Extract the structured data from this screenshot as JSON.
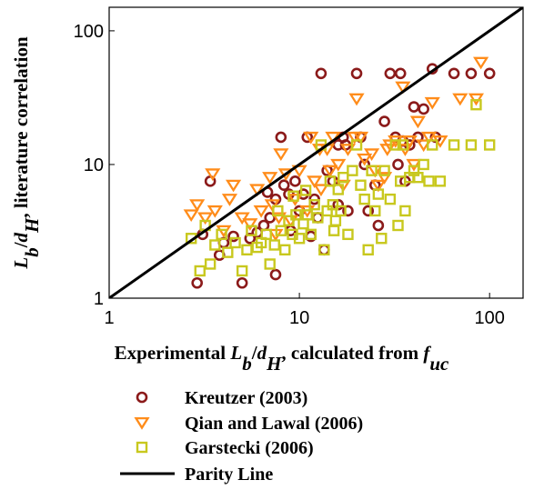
{
  "chart_data": {
    "type": "scatter",
    "title": "",
    "xlabel": {
      "parts": [
        {
          "text": "Experimental ",
          "italic": false
        },
        {
          "text": "L",
          "italic": true
        },
        {
          "text": "b",
          "italic": true,
          "sub": true
        },
        {
          "text": "/",
          "italic": false
        },
        {
          "text": "d",
          "italic": true
        },
        {
          "text": "H",
          "italic": true,
          "sub": true
        },
        {
          "text": ", calculated from ",
          "italic": false
        },
        {
          "text": "f",
          "italic": true
        },
        {
          "text": "uc",
          "italic": true,
          "sub": true
        }
      ]
    },
    "ylabel": {
      "parts": [
        {
          "text": "L",
          "italic": true
        },
        {
          "text": "b",
          "italic": true,
          "sub": true
        },
        {
          "text": "/",
          "italic": false
        },
        {
          "text": "d",
          "italic": true
        },
        {
          "text": "H",
          "italic": true,
          "sub": true
        },
        {
          "text": ", literature correlation",
          "italic": false
        }
      ]
    },
    "xscale": "log",
    "yscale": "log",
    "xlim": [
      1,
      150
    ],
    "ylim": [
      1,
      150
    ],
    "xticks": [
      1,
      10,
      100
    ],
    "yticks": [
      1,
      10,
      100
    ],
    "xtick_labels": [
      "1",
      "10",
      "100"
    ],
    "ytick_labels": [
      "1",
      "10",
      "100"
    ],
    "grid": false,
    "legend_position": "bottom",
    "series": [
      {
        "name": "Kreutzer (2003)",
        "marker": "circle",
        "color": "#8b1a1a",
        "points": [
          [
            2.9,
            1.3
          ],
          [
            3.1,
            3.0
          ],
          [
            3.4,
            7.5
          ],
          [
            3.8,
            2.1
          ],
          [
            4.0,
            2.6
          ],
          [
            4.5,
            2.9
          ],
          [
            5.0,
            1.3
          ],
          [
            5.5,
            2.8
          ],
          [
            6.0,
            3.1
          ],
          [
            6.5,
            3.5
          ],
          [
            7.0,
            4.0
          ],
          [
            7.5,
            1.5
          ],
          [
            7.5,
            5.5
          ],
          [
            8.0,
            16.0
          ],
          [
            8.3,
            7.0
          ],
          [
            8.8,
            6.0
          ],
          [
            9.0,
            3.2
          ],
          [
            9.5,
            7.5
          ],
          [
            10.0,
            4.5
          ],
          [
            10.5,
            6.0
          ],
          [
            11.0,
            16.0
          ],
          [
            12.0,
            5.5
          ],
          [
            12.5,
            4.0
          ],
          [
            13.0,
            48.0
          ],
          [
            13.5,
            2.3
          ],
          [
            14.0,
            9.0
          ],
          [
            15.0,
            7.5
          ],
          [
            16.0,
            14.0
          ],
          [
            17.0,
            16.0
          ],
          [
            18.0,
            4.5
          ],
          [
            20.0,
            48.0
          ],
          [
            21.0,
            16.0
          ],
          [
            22.0,
            10.0
          ],
          [
            23.0,
            4.5
          ],
          [
            25.0,
            7.0
          ],
          [
            26.0,
            3.5
          ],
          [
            28.0,
            21.0
          ],
          [
            30.0,
            48.0
          ],
          [
            32.0,
            16.0
          ],
          [
            33.0,
            10.0
          ],
          [
            34.0,
            48.0
          ],
          [
            36.0,
            7.5
          ],
          [
            40.0,
            27.0
          ],
          [
            42.0,
            16.0
          ],
          [
            45.0,
            26.0
          ],
          [
            50.0,
            52.0
          ],
          [
            52.0,
            16.0
          ],
          [
            65.0,
            48.0
          ],
          [
            80.0,
            48.0
          ],
          [
            100.0,
            48.0
          ],
          [
            35.0,
            15.0
          ],
          [
            38.0,
            14.0
          ],
          [
            17.5,
            14.0
          ],
          [
            16.0,
            5.0
          ],
          [
            11.5,
            2.9
          ],
          [
            6.8,
            6.2
          ]
        ]
      },
      {
        "name": "Qian and Lawal (2006)",
        "marker": "triangle-down",
        "color": "#ff8c1a",
        "points": [
          [
            2.7,
            4.2
          ],
          [
            2.9,
            5.0
          ],
          [
            3.2,
            4.0
          ],
          [
            3.5,
            8.5
          ],
          [
            3.6,
            4.5
          ],
          [
            4.0,
            3.2
          ],
          [
            4.3,
            5.5
          ],
          [
            4.5,
            7.0
          ],
          [
            5.0,
            4.0
          ],
          [
            5.5,
            3.6
          ],
          [
            6.0,
            6.5
          ],
          [
            6.3,
            4.5
          ],
          [
            7.0,
            8.0
          ],
          [
            7.2,
            5.0
          ],
          [
            7.5,
            3.0
          ],
          [
            8.0,
            12.0
          ],
          [
            8.5,
            8.5
          ],
          [
            9.0,
            3.8
          ],
          [
            9.5,
            5.5
          ],
          [
            10.0,
            9.0
          ],
          [
            11.0,
            4.5
          ],
          [
            11.5,
            16.0
          ],
          [
            12.0,
            7.5
          ],
          [
            13.0,
            6.5
          ],
          [
            14.0,
            13.0
          ],
          [
            14.5,
            9.0
          ],
          [
            15.0,
            16.0
          ],
          [
            16.0,
            10.0
          ],
          [
            17.0,
            7.0
          ],
          [
            18.0,
            13.0
          ],
          [
            20.0,
            31.0
          ],
          [
            21.0,
            16.0
          ],
          [
            22.0,
            11.0
          ],
          [
            24.0,
            12.0
          ],
          [
            25.0,
            9.0
          ],
          [
            26.0,
            7.0
          ],
          [
            28.0,
            8.0
          ],
          [
            30.0,
            14.0
          ],
          [
            32.0,
            15.0
          ],
          [
            35.0,
            38.0
          ],
          [
            36.0,
            13.0
          ],
          [
            38.0,
            15.0
          ],
          [
            40.0,
            10.0
          ],
          [
            42.0,
            21.0
          ],
          [
            45.0,
            14.0
          ],
          [
            50.0,
            29.0
          ],
          [
            55.0,
            15.0
          ],
          [
            70.0,
            31.0
          ],
          [
            85.0,
            31.0
          ],
          [
            90.0,
            58.0
          ],
          [
            7.8,
            4.0
          ],
          [
            12.8,
            13.0
          ],
          [
            19.5,
            16.0
          ],
          [
            29.0,
            13.0
          ],
          [
            48.0,
            16.0
          ]
        ]
      },
      {
        "name": "Garstecki (2006)",
        "marker": "square",
        "color": "#c8c81e",
        "points": [
          [
            2.7,
            2.8
          ],
          [
            3.0,
            1.6
          ],
          [
            3.2,
            3.5
          ],
          [
            3.4,
            1.8
          ],
          [
            3.6,
            2.5
          ],
          [
            3.9,
            3.0
          ],
          [
            4.2,
            2.2
          ],
          [
            4.6,
            2.6
          ],
          [
            5.0,
            1.6
          ],
          [
            5.3,
            2.3
          ],
          [
            5.6,
            3.2
          ],
          [
            6.0,
            2.4
          ],
          [
            6.3,
            2.6
          ],
          [
            6.7,
            3.0
          ],
          [
            7.0,
            1.8
          ],
          [
            7.4,
            2.5
          ],
          [
            7.7,
            4.5
          ],
          [
            8.0,
            3.2
          ],
          [
            8.4,
            2.3
          ],
          [
            8.8,
            3.8
          ],
          [
            9.2,
            3.0
          ],
          [
            9.6,
            4.2
          ],
          [
            10.0,
            2.8
          ],
          [
            10.5,
            3.6
          ],
          [
            11.0,
            4.2
          ],
          [
            11.5,
            3.0
          ],
          [
            12.0,
            5.0
          ],
          [
            12.5,
            4.0
          ],
          [
            13.0,
            14.0
          ],
          [
            13.5,
            2.3
          ],
          [
            14.0,
            4.5
          ],
          [
            14.5,
            7.5
          ],
          [
            15.0,
            5.0
          ],
          [
            15.5,
            3.8
          ],
          [
            16.0,
            6.5
          ],
          [
            16.5,
            4.5
          ],
          [
            17.0,
            8.0
          ],
          [
            18.0,
            3.0
          ],
          [
            19.0,
            9.0
          ],
          [
            20.0,
            14.0
          ],
          [
            21.0,
            7.0
          ],
          [
            22.0,
            5.5
          ],
          [
            23.0,
            2.3
          ],
          [
            24.0,
            9.0
          ],
          [
            25.0,
            4.5
          ],
          [
            26.0,
            6.0
          ],
          [
            27.0,
            2.8
          ],
          [
            28.0,
            9.0
          ],
          [
            30.0,
            5.5
          ],
          [
            32.0,
            14.0
          ],
          [
            33.0,
            3.5
          ],
          [
            34.0,
            7.5
          ],
          [
            35.0,
            14.0
          ],
          [
            36.0,
            4.5
          ],
          [
            38.0,
            8.0
          ],
          [
            40.0,
            9.0
          ],
          [
            42.0,
            8.0
          ],
          [
            45.0,
            10.0
          ],
          [
            48.0,
            7.5
          ],
          [
            50.0,
            14.0
          ],
          [
            55.0,
            7.5
          ],
          [
            65.0,
            14.0
          ],
          [
            80.0,
            14.0
          ],
          [
            85.0,
            28.0
          ],
          [
            100.0,
            14.0
          ],
          [
            9.3,
            5.8
          ],
          [
            10.8,
            6.4
          ],
          [
            15.2,
            3.2
          ]
        ]
      },
      {
        "name": "Parity Line",
        "type": "line",
        "color": "#000000",
        "points": [
          [
            1,
            1
          ],
          [
            150,
            150
          ]
        ]
      }
    ]
  }
}
